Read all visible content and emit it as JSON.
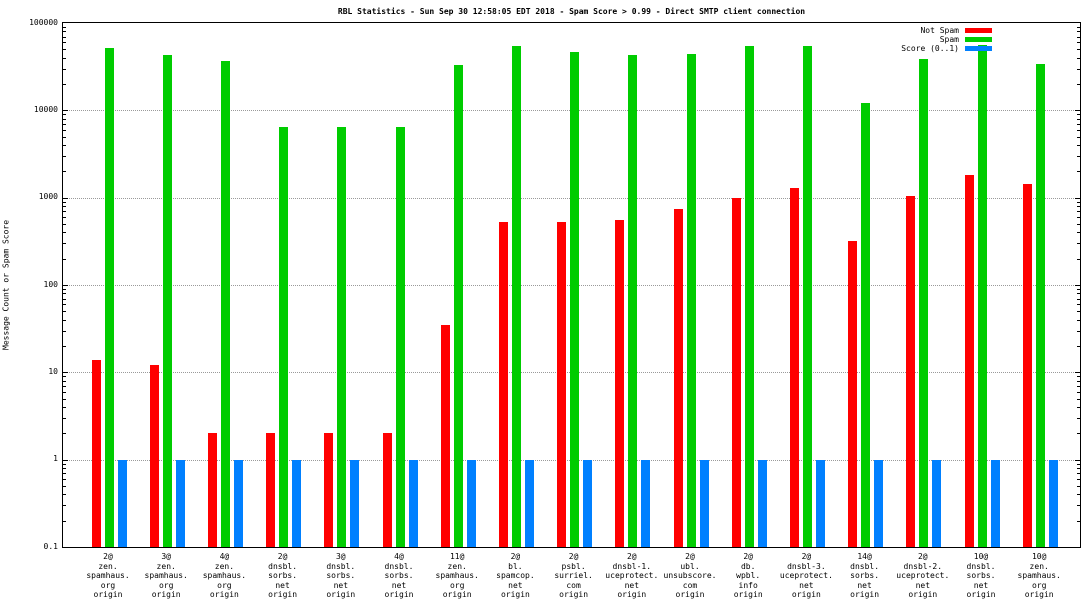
{
  "chart_data": {
    "type": "bar",
    "title": "RBL Statistics - Sun Sep 30 12:58:05 EDT 2018 - Spam Score > 0.99 - Direct SMTP client connection",
    "ylabel": "Message Count or Spam Score",
    "y_scale": "log",
    "ylim": [
      0.1,
      100000
    ],
    "y_tick_labels": [
      "100000",
      "10000",
      "1000",
      "100",
      "10",
      "1",
      "0.1"
    ],
    "grid": true,
    "legend_position": "top-right",
    "categories": [
      [
        "2@",
        "zen.",
        "spamhaus.",
        "org",
        "origin"
      ],
      [
        "3@",
        "zen.",
        "spamhaus.",
        "org",
        "origin"
      ],
      [
        "4@",
        "zen.",
        "spamhaus.",
        "org",
        "origin"
      ],
      [
        "2@",
        "dnsbl.",
        "sorbs.",
        "net",
        "origin"
      ],
      [
        "3@",
        "dnsbl.",
        "sorbs.",
        "net",
        "origin"
      ],
      [
        "4@",
        "dnsbl.",
        "sorbs.",
        "net",
        "origin"
      ],
      [
        "11@",
        "zen.",
        "spamhaus.",
        "org",
        "origin"
      ],
      [
        "2@",
        "bl.",
        "spamcop.",
        "net",
        "origin"
      ],
      [
        "2@",
        "psbl.",
        "surriel.",
        "com",
        "origin"
      ],
      [
        "2@",
        "dnsbl-1.",
        "uceprotect.",
        "net",
        "origin"
      ],
      [
        "2@",
        "ubl.",
        "unsubscore.",
        "com",
        "origin"
      ],
      [
        "2@",
        "db.",
        "wpbl.",
        "info",
        "origin"
      ],
      [
        "2@",
        "dnsbl-3.",
        "uceprotect.",
        "net",
        "origin"
      ],
      [
        "14@",
        "dnsbl.",
        "sorbs.",
        "net",
        "origin"
      ],
      [
        "2@",
        "dnsbl-2.",
        "uceprotect.",
        "net",
        "origin"
      ],
      [
        "10@",
        "dnsbl.",
        "sorbs.",
        "net",
        "origin"
      ],
      [
        "10@",
        "zen.",
        "spamhaus.",
        "org",
        "origin"
      ]
    ],
    "series": [
      {
        "name": "Not Spam",
        "color": "#ff0000",
        "values": [
          14,
          12,
          2,
          2,
          2,
          2,
          35,
          520,
          520,
          560,
          750,
          1000,
          1300,
          320,
          1050,
          1800,
          1450
        ]
      },
      {
        "name": "Spam",
        "color": "#00cc00",
        "values": [
          52000,
          43000,
          37000,
          6500,
          6500,
          6500,
          33000,
          55000,
          47000,
          43000,
          44000,
          55000,
          55000,
          12000,
          39000,
          56000,
          34000
        ]
      },
      {
        "name": "Score (0..1)",
        "color": "#0080ff",
        "values": [
          1,
          1,
          1,
          1,
          1,
          1,
          1,
          1,
          1,
          1,
          1,
          1,
          1,
          1,
          1,
          1,
          1
        ]
      }
    ]
  }
}
